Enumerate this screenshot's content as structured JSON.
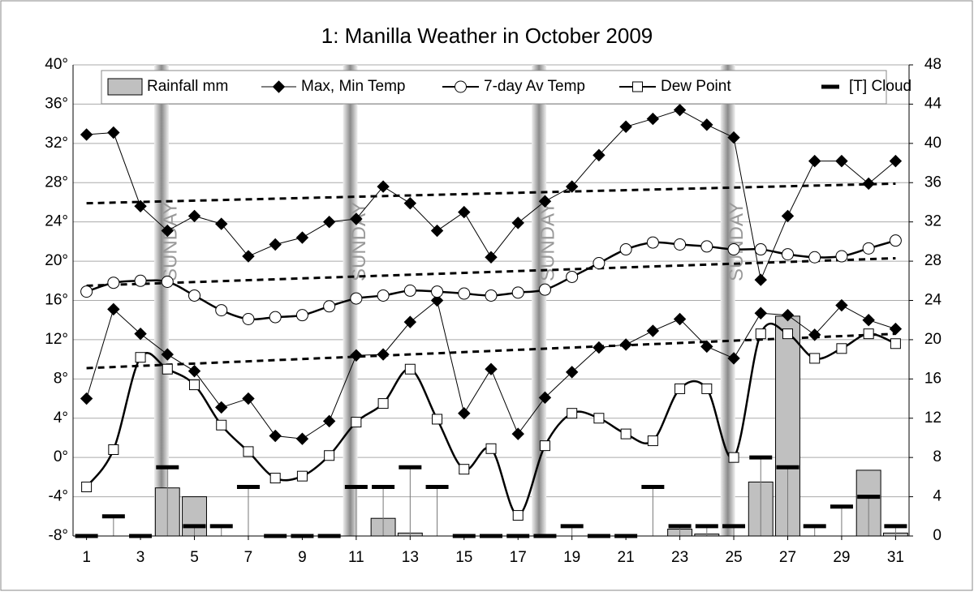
{
  "chart_data": {
    "type": "combo",
    "title": "1: Manilla Weather in October 2009",
    "x": [
      1,
      2,
      3,
      4,
      5,
      6,
      7,
      8,
      9,
      10,
      11,
      12,
      13,
      14,
      15,
      16,
      17,
      18,
      19,
      20,
      21,
      22,
      23,
      24,
      25,
      26,
      27,
      28,
      29,
      30,
      31
    ],
    "xlim": [
      0.5,
      31.5
    ],
    "xticks": [
      1,
      3,
      5,
      7,
      9,
      11,
      13,
      15,
      17,
      19,
      21,
      23,
      25,
      27,
      29,
      31
    ],
    "ylim": [
      -8,
      40
    ],
    "yticks": [
      {
        "value": -8,
        "label": "-8°"
      },
      {
        "value": -4,
        "label": "-4°"
      },
      {
        "value": 0,
        "label": "0°"
      },
      {
        "value": 4,
        "label": "4°"
      },
      {
        "value": 8,
        "label": "8°"
      },
      {
        "value": 12,
        "label": "12°"
      },
      {
        "value": 16,
        "label": "16°"
      },
      {
        "value": 20,
        "label": "20°"
      },
      {
        "value": 24,
        "label": "24°"
      },
      {
        "value": 28,
        "label": "28°"
      },
      {
        "value": 32,
        "label": "32°"
      },
      {
        "value": 36,
        "label": "36°"
      },
      {
        "value": 40,
        "label": "40°"
      }
    ],
    "y2lim": [
      0,
      48
    ],
    "y2ticks": [
      0,
      4,
      8,
      12,
      16,
      20,
      24,
      28,
      32,
      36,
      40,
      44,
      48
    ],
    "grid": true,
    "sundays": [
      4,
      11,
      18,
      25
    ],
    "sunday_label": "SUNDAY",
    "series": [
      {
        "name": "Rainfall mm",
        "style": "bar",
        "axis": "y2",
        "color": "#c0c0c0",
        "values": [
          0,
          0,
          0,
          4.9,
          4.0,
          0,
          0,
          0,
          0,
          0,
          0,
          1.8,
          0.3,
          0,
          0,
          0,
          0,
          0,
          0,
          0,
          0,
          0,
          0.7,
          0.2,
          0,
          5.5,
          22.4,
          0,
          0,
          6.7,
          0.3
        ]
      },
      {
        "name": "Max, Min Temp",
        "style": "diamond",
        "color": "#000000",
        "values": [
          32.9,
          33.1,
          25.6,
          23.1,
          24.6,
          23.8,
          20.5,
          21.7,
          22.4,
          24.0,
          24.3,
          27.6,
          25.9,
          23.1,
          25.0,
          20.4,
          23.9,
          26.1,
          27.6,
          30.8,
          33.7,
          34.5,
          35.4,
          33.9,
          32.6,
          18.1,
          24.6,
          30.2,
          30.2,
          27.9,
          30.2
        ],
        "low_values": [
          6.0,
          15.1,
          12.6,
          10.5,
          8.8,
          5.1,
          6.0,
          2.2,
          1.9,
          3.7,
          10.4,
          10.5,
          13.8,
          16.0,
          4.5,
          9.0,
          2.4,
          6.1,
          8.7,
          11.2,
          11.5,
          12.9,
          14.1,
          11.3,
          10.1,
          14.7,
          14.5,
          12.5,
          15.5,
          14.0,
          13.1
        ]
      },
      {
        "name": "7-day Av Temp",
        "style": "circle",
        "color": "#000000",
        "values": [
          16.9,
          17.8,
          18.0,
          17.9,
          16.5,
          15.0,
          14.1,
          14.3,
          14.5,
          15.4,
          16.2,
          16.5,
          17.0,
          16.9,
          16.7,
          16.5,
          16.8,
          17.1,
          18.4,
          19.8,
          21.2,
          21.9,
          21.7,
          21.5,
          21.2,
          21.2,
          20.7,
          20.4,
          20.5,
          21.3,
          22.1
        ]
      },
      {
        "name": "Dew Point",
        "style": "square",
        "color": "#000000",
        "values": [
          -3.0,
          0.8,
          10.2,
          9.0,
          7.4,
          3.3,
          0.6,
          -2.1,
          -1.9,
          0.2,
          3.6,
          5.5,
          9.0,
          3.9,
          -1.2,
          0.9,
          -5.9,
          1.2,
          4.5,
          4.0,
          2.4,
          1.7,
          7.0,
          7.0,
          0.0,
          12.6,
          12.6,
          10.1,
          11.1,
          12.6,
          11.6
        ]
      },
      {
        "name": "[T] Cloud",
        "style": "dash",
        "axis": "y2",
        "color": "#000000",
        "values": [
          0,
          2,
          0,
          7,
          1,
          1,
          5,
          0,
          0,
          0,
          5,
          5,
          7,
          5,
          0,
          0,
          0,
          0,
          1,
          0,
          0,
          5,
          1,
          1,
          1,
          8,
          7,
          1,
          3,
          4,
          1
        ]
      }
    ],
    "trend_lines": [
      {
        "start": 25.9,
        "end": 27.9
      },
      {
        "start": 17.5,
        "end": 20.3
      },
      {
        "start": 9.1,
        "end": 12.6
      }
    ]
  }
}
